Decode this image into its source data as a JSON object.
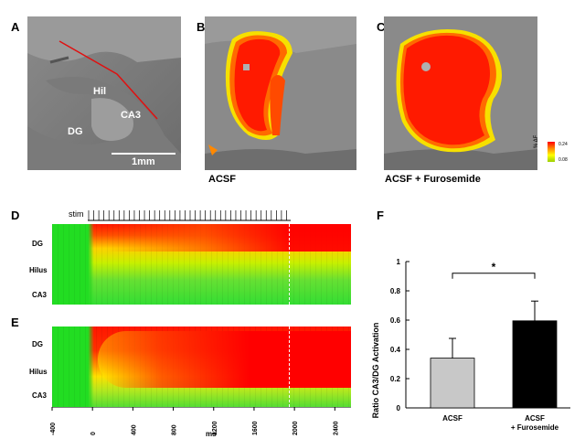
{
  "panels": {
    "a": {
      "letter": "A",
      "labels": {
        "hil": "Hil",
        "ca3": "CA3",
        "dg": "DG"
      },
      "scale_bar": "1mm"
    },
    "b": {
      "letter": "B",
      "caption": "ACSF"
    },
    "c": {
      "letter": "C",
      "caption": "ACSF + Furosemide"
    },
    "d": {
      "letter": "D",
      "stim_label": "stim",
      "rows": [
        "DG",
        "Hilus",
        "CA3"
      ]
    },
    "e": {
      "letter": "E",
      "rows": [
        "DG",
        "Hilus",
        "CA3"
      ]
    },
    "f": {
      "letter": "F"
    }
  },
  "colorbar": {
    "unit": "% ΔF",
    "max": "0.24",
    "min": "0.08"
  },
  "time_axis": {
    "label": "ms",
    "ticks": [
      "-400",
      "0",
      "400",
      "800",
      "1200",
      "1600",
      "2000",
      "2400"
    ]
  },
  "colors": {
    "low": "#22dd22",
    "mid": "#ffff00",
    "high": "#ff0000",
    "acsf_bar": "#c8c8c8",
    "furo_bar": "#000000"
  },
  "chart_data": {
    "type": "bar",
    "categories": [
      "ACSF",
      "ACSF\n+ Furosemide"
    ],
    "values": [
      0.34,
      0.595
    ],
    "errors": [
      0.135,
      0.135
    ],
    "ylabel": "Ratio CA3/DG Activation",
    "ylim": [
      0,
      1
    ],
    "yticks": [
      "0",
      "0.2",
      "0.4",
      "0.6",
      "0.8",
      "1"
    ],
    "significance": "*",
    "grid": false,
    "legend": "none"
  }
}
